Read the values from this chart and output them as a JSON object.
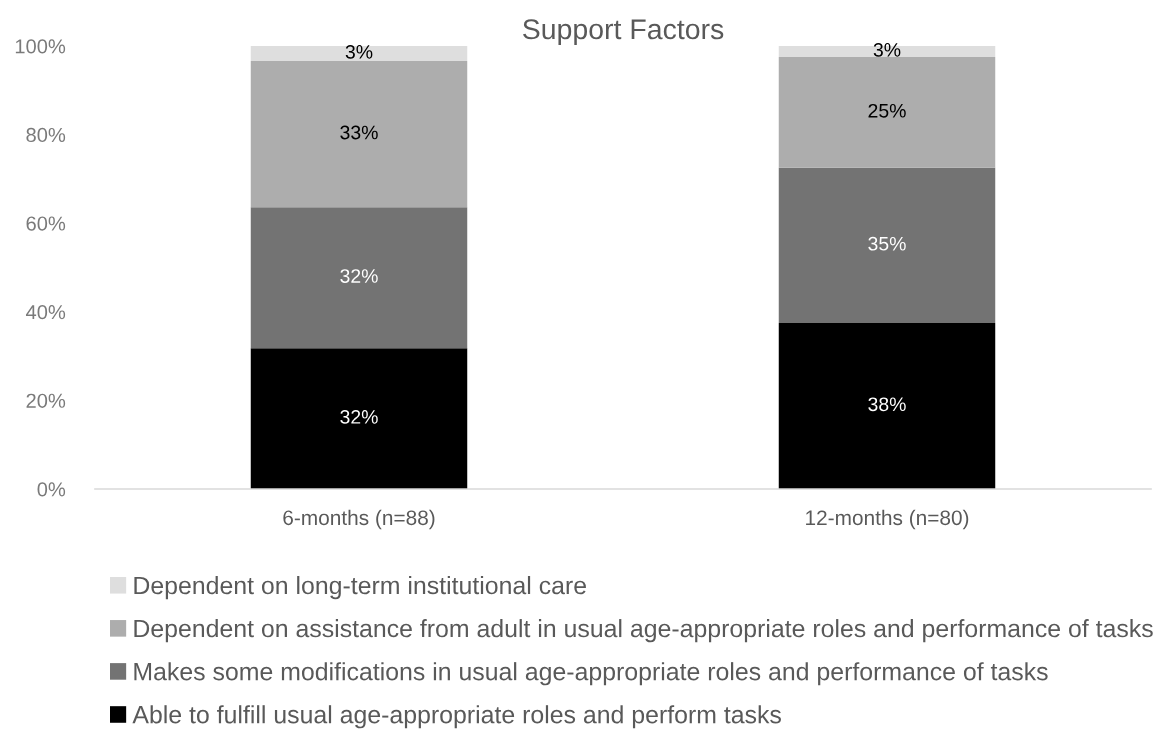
{
  "chart_data": {
    "type": "bar",
    "title": "Support Factors",
    "stacked": true,
    "legend": "bottom",
    "categories": [
      "6-months (n=88)",
      "12-months (n=80)"
    ],
    "series": [
      {
        "name": "Able to fulfill usual age-appropriate roles and perform tasks",
        "color": "#000000",
        "values": [
          31.8,
          37.5
        ],
        "value_labels": [
          "32%",
          "38%"
        ]
      },
      {
        "name": "Makes some modifications in usual age-appropriate roles and performance of tasks",
        "color": "#737373",
        "values": [
          31.8,
          35
        ],
        "value_labels": [
          "32%",
          "35%"
        ]
      },
      {
        "name": "Dependent on assistance from adult in usual age-appropriate roles and performance of tasks",
        "color": "#adadad",
        "values": [
          33,
          25
        ],
        "value_labels": [
          "33%",
          "25%"
        ]
      },
      {
        "name": "Dependent on long-term institutional care",
        "color": "#dedede",
        "values": [
          3.4,
          2.5
        ],
        "value_labels": [
          "3%",
          "3%"
        ]
      }
    ],
    "ylim": [
      0,
      100
    ],
    "yticks": [
      {
        "value": 0,
        "label": "0%"
      },
      {
        "value": 20,
        "label": "20%"
      },
      {
        "value": 40,
        "label": "40%"
      },
      {
        "value": 60,
        "label": "60%"
      },
      {
        "value": 80,
        "label": "80%"
      },
      {
        "value": 100,
        "label": "100%"
      }
    ]
  }
}
